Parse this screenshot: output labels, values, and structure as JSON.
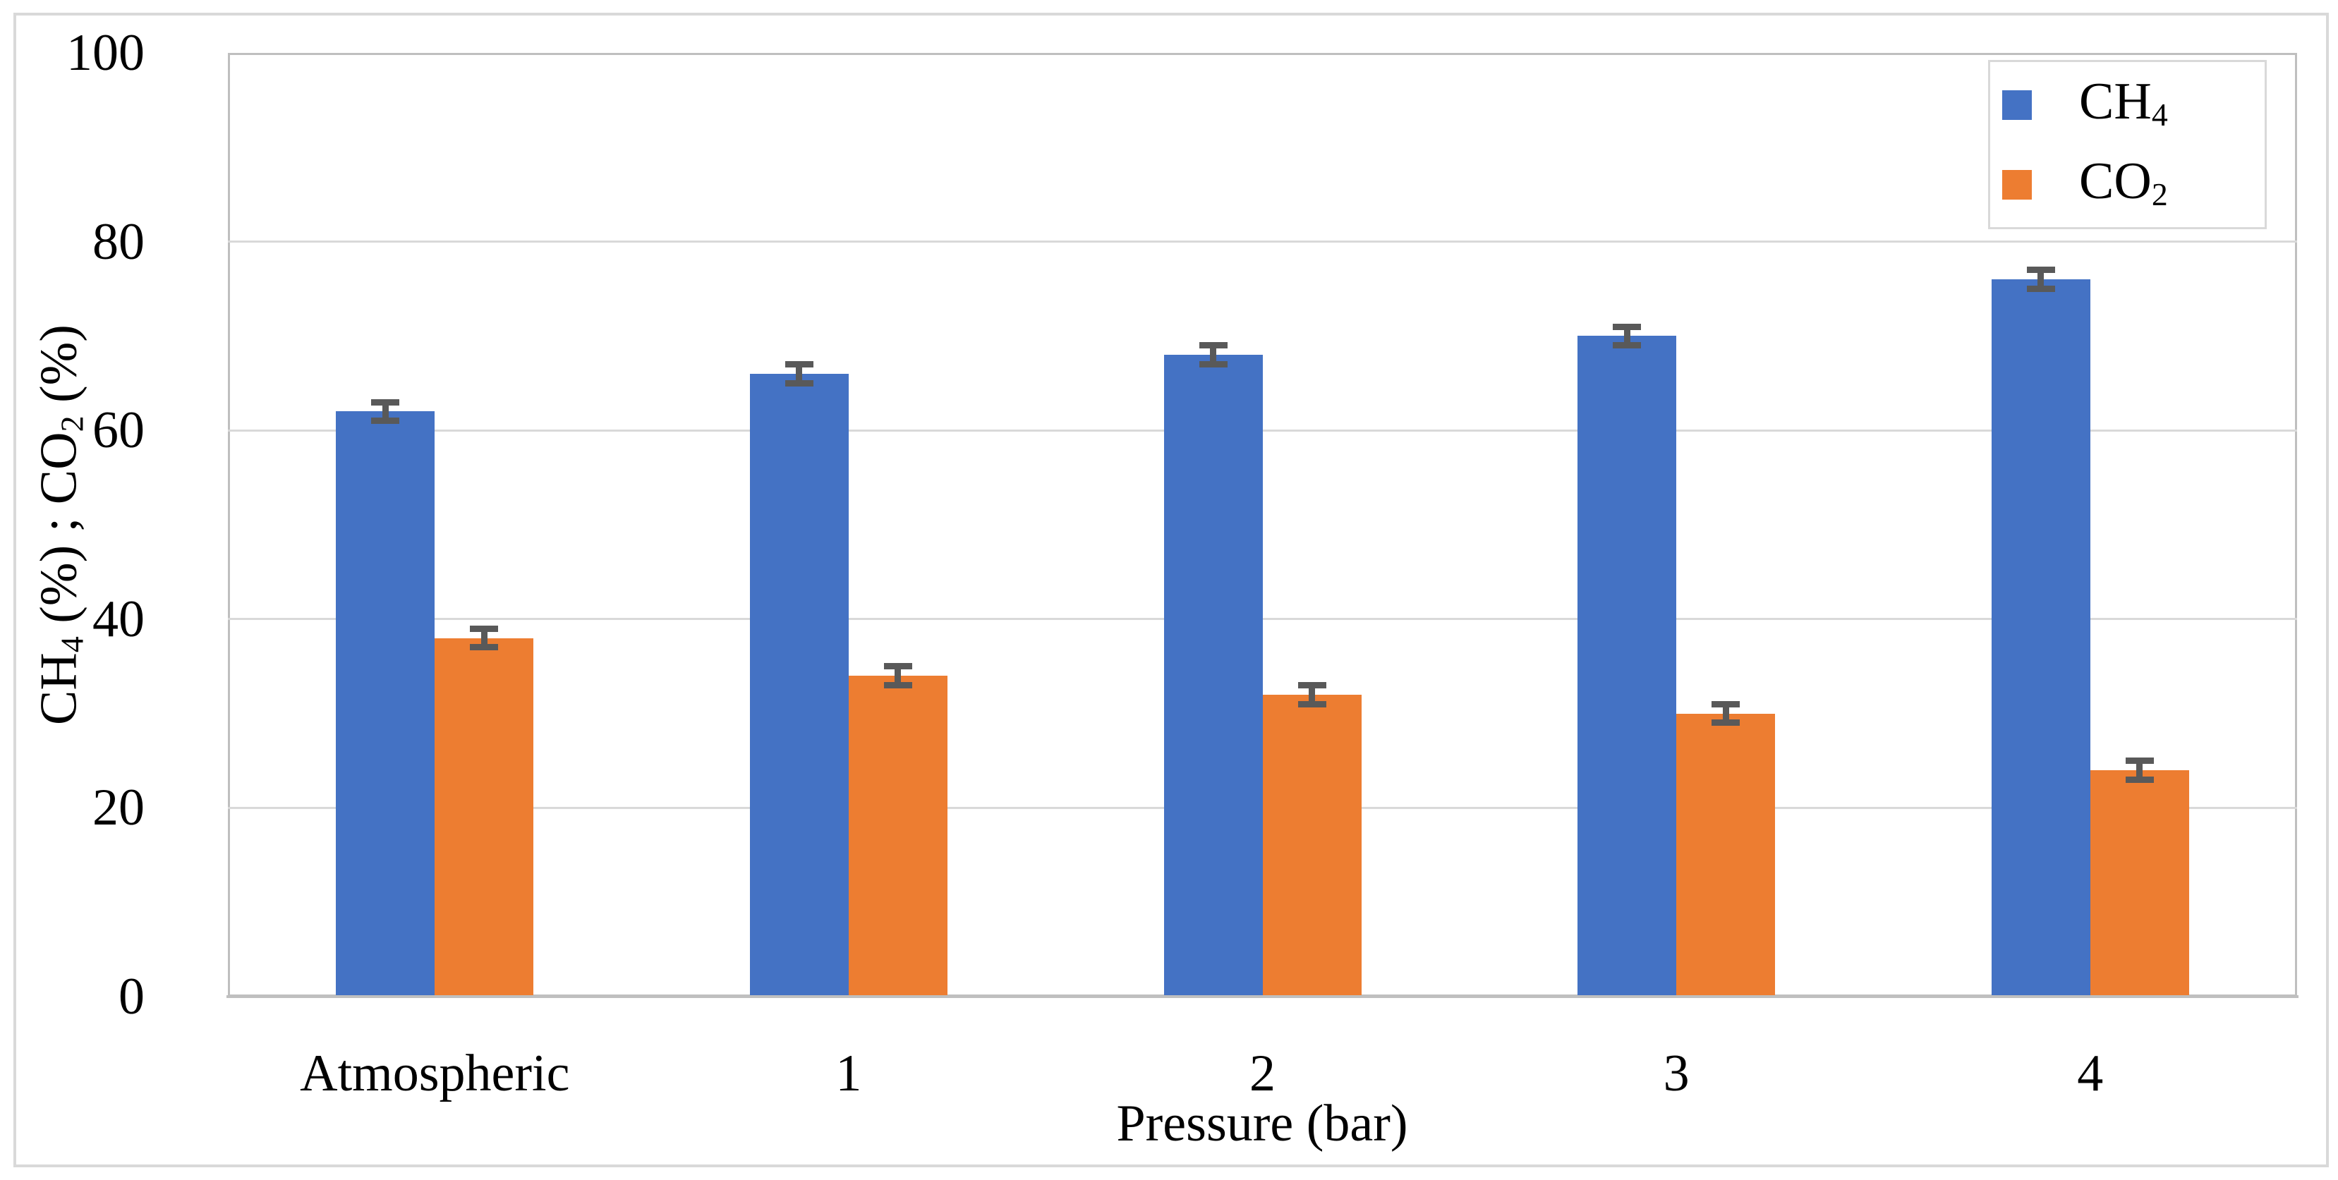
{
  "figure": {
    "background_color": "#FFFFFF",
    "outer_border_color": "#D9D9D9",
    "plot_border_color": "#BFBFBF"
  },
  "chart_data": {
    "type": "bar",
    "title": "",
    "categories": [
      "Atmospheric",
      "1",
      "2",
      "3",
      "4"
    ],
    "series": [
      {
        "name": "CH4",
        "label_base": "CH",
        "label_sub": "4",
        "color": "#4472C4",
        "values": [
          62,
          66,
          68,
          70,
          76
        ],
        "errors": [
          1,
          1,
          1,
          1,
          1
        ]
      },
      {
        "name": "CO2",
        "label_base": "CO",
        "label_sub": "2",
        "color": "#ED7D31",
        "values": [
          38,
          34,
          32,
          30,
          24
        ],
        "errors": [
          1,
          1,
          1,
          1,
          1
        ]
      }
    ],
    "xlabel": "Pressure (bar)",
    "ylabel_parts": [
      {
        "t": "CH"
      },
      {
        "t": "4",
        "sub": true
      },
      {
        "t": " (%) ; CO"
      },
      {
        "t": "2",
        "sub": true
      },
      {
        "t": " (%)"
      }
    ],
    "ylim": [
      0,
      100
    ],
    "yticks": [
      0,
      20,
      40,
      60,
      80,
      100
    ],
    "grid": true,
    "gridline_color": "#D9D9D9",
    "error_bar_color": "#595959",
    "legend_position": "top-right"
  }
}
